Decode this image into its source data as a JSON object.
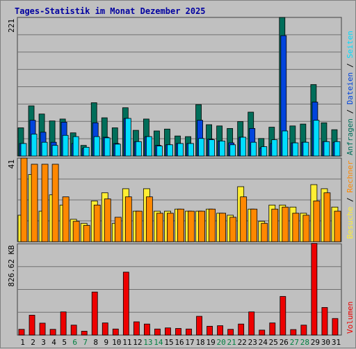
{
  "title": "Tages-Statistik im Monat Dezember 2025",
  "colors": {
    "background": "#c0c0c0",
    "title": "#0000a0",
    "grid": "#707070",
    "weekday": "#000000",
    "weekend": "#008040",
    "anfragen": "#006e5a",
    "dateien": "#0044dd",
    "seiten": "#00ddff",
    "besuche": "#ffee33",
    "rechner": "#ff8800",
    "volumen": "#ee0000"
  },
  "chart_data": [
    {
      "type": "bar",
      "panel": "top",
      "ytick_label": "221",
      "ylim": [
        0,
        221
      ],
      "categories": [
        "1",
        "2",
        "3",
        "4",
        "5",
        "6",
        "7",
        "8",
        "9",
        "10",
        "11",
        "12",
        "13",
        "14",
        "15",
        "16",
        "17",
        "18",
        "19",
        "20",
        "21",
        "22",
        "23",
        "24",
        "25",
        "26",
        "27",
        "28",
        "29",
        "30",
        "31"
      ],
      "series": [
        {
          "name": "Anfragen",
          "values": [
            45,
            80,
            67,
            56,
            59,
            37,
            17,
            85,
            61,
            45,
            77,
            41,
            59,
            40,
            43,
            32,
            31,
            82,
            50,
            48,
            44,
            55,
            70,
            28,
            46,
            221,
            48,
            51,
            114,
            53,
            42
          ]
        },
        {
          "name": "Dateien",
          "values": [
            20,
            57,
            38,
            22,
            54,
            20,
            12,
            53,
            30,
            20,
            60,
            23,
            31,
            17,
            18,
            20,
            20,
            57,
            27,
            24,
            21,
            30,
            44,
            13,
            20,
            192,
            21,
            22,
            86,
            23,
            22
          ]
        },
        {
          "name": "Seiten",
          "values": [
            20,
            35,
            22,
            17,
            33,
            31,
            14,
            31,
            29,
            19,
            60,
            23,
            31,
            16,
            18,
            20,
            20,
            28,
            26,
            24,
            18,
            30,
            22,
            15,
            26,
            40,
            21,
            22,
            57,
            23,
            23
          ]
        }
      ]
    },
    {
      "type": "bar",
      "panel": "middle",
      "ytick_label": "41",
      "ylim": [
        0,
        41
      ],
      "categories": [
        "1",
        "2",
        "3",
        "4",
        "5",
        "6",
        "7",
        "8",
        "9",
        "10",
        "11",
        "12",
        "13",
        "14",
        "15",
        "16",
        "17",
        "18",
        "19",
        "20",
        "21",
        "22",
        "23",
        "24",
        "25",
        "26",
        "27",
        "28",
        "29",
        "30",
        "31"
      ],
      "series": [
        {
          "name": "Besuche",
          "values": [
            13,
            33,
            15,
            23,
            18,
            11,
            9,
            20,
            24,
            9,
            26,
            15,
            26,
            15,
            15,
            16,
            15,
            15,
            16,
            14,
            13,
            27,
            16,
            10,
            18,
            18,
            17,
            14,
            28,
            26,
            17
          ]
        },
        {
          "name": "Rechner",
          "values": [
            41,
            38,
            38,
            38,
            22,
            10,
            8,
            18,
            21,
            12,
            22,
            15,
            22,
            14,
            14,
            16,
            15,
            15,
            16,
            14,
            12,
            22,
            16,
            9,
            16,
            17,
            14,
            13,
            20,
            24,
            15
          ]
        }
      ]
    },
    {
      "type": "bar",
      "panel": "bottom",
      "ytick_label": "826.62 KB",
      "ylim": [
        0,
        826.62
      ],
      "unit": "KB",
      "categories": [
        "1",
        "2",
        "3",
        "4",
        "5",
        "6",
        "7",
        "8",
        "9",
        "10",
        "11",
        "12",
        "13",
        "14",
        "15",
        "16",
        "17",
        "18",
        "19",
        "20",
        "21",
        "22",
        "23",
        "24",
        "25",
        "26",
        "27",
        "28",
        "29",
        "30",
        "31"
      ],
      "series": [
        {
          "name": "Volumen",
          "values": [
            52,
            180,
            108,
            52,
            210,
            90,
            35,
            390,
            110,
            55,
            570,
            120,
            100,
            55,
            65,
            60,
            55,
            170,
            80,
            85,
            52,
            100,
            210,
            45,
            110,
            350,
            50,
            90,
            830,
            250,
            150
          ]
        }
      ]
    }
  ],
  "x_day_labels": [
    "1",
    "2",
    "3",
    "4",
    "5",
    "6",
    "7",
    "8",
    "9",
    "10",
    "11",
    "12",
    "13",
    "14",
    "15",
    "16",
    "17",
    "18",
    "19",
    "20",
    "21",
    "22",
    "23",
    "24",
    "25",
    "26",
    "27",
    "28",
    "29",
    "30",
    "31"
  ],
  "weekend_days": [
    "6",
    "7",
    "13",
    "14",
    "20",
    "21",
    "27",
    "28"
  ],
  "right_legend": {
    "top": [
      {
        "text": "Anfragen",
        "color": "#006e5a"
      },
      {
        "text": "Dateien",
        "color": "#0044dd"
      },
      {
        "text": "Seiten",
        "color": "#00ddff"
      }
    ],
    "middle": [
      {
        "text": "Besuche",
        "color": "#ffee33"
      },
      {
        "text": "Rechner",
        "color": "#ff8800"
      }
    ],
    "bottom": [
      {
        "text": "Volumen",
        "color": "#ee0000"
      }
    ],
    "separator": "/"
  }
}
